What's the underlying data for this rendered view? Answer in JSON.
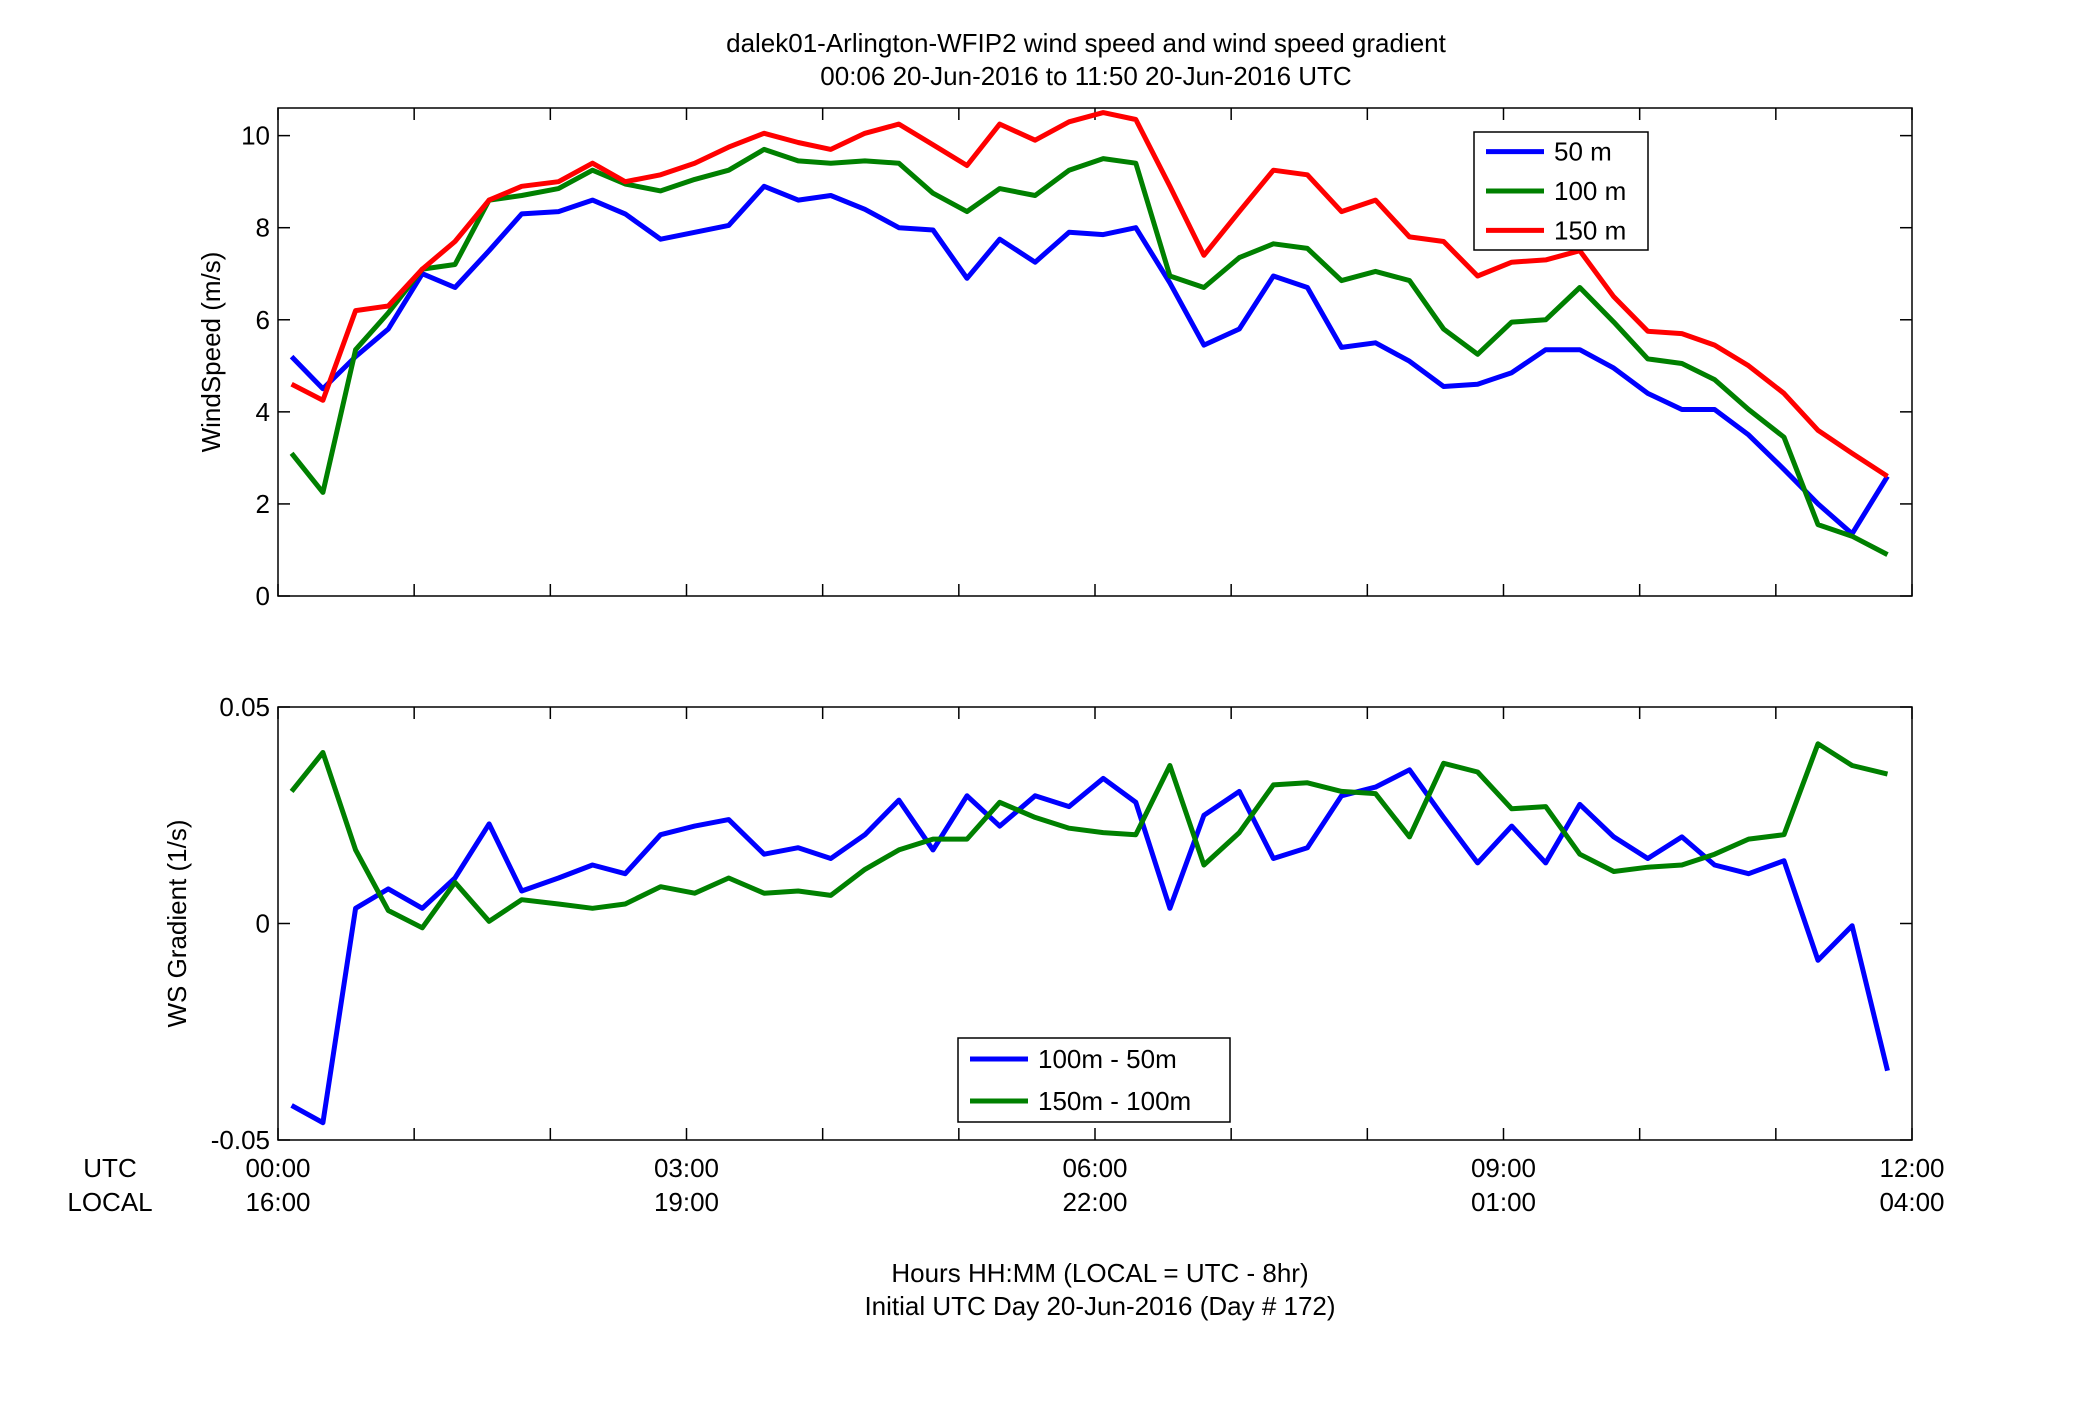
{
  "figure": {
    "title_line1": "dalek01-Arlington-WFIP2  wind speed and wind speed gradient",
    "title_line2": "00:06 20-Jun-2016 to 11:50 20-Jun-2016  UTC",
    "row_label_utc": "UTC",
    "row_label_local": "LOCAL",
    "xlabel_line1": "Hours HH:MM  (LOCAL = UTC - 8hr)",
    "xlabel_line2": "Initial UTC Day 20-Jun-2016 (Day # 172)",
    "x_ticks_utc": [
      "00:00",
      "03:00",
      "06:00",
      "09:00",
      "12:00"
    ],
    "x_ticks_local": [
      "16:00",
      "19:00",
      "22:00",
      "01:00",
      "04:00"
    ],
    "x_tick_hours": [
      0,
      3,
      6,
      9,
      12
    ]
  },
  "chart_data": [
    {
      "type": "line",
      "ylabel": "WindSpeed (m/s)",
      "ylim": [
        0,
        10.6
      ],
      "xlim": [
        0,
        12
      ],
      "yticks": [
        0,
        2,
        4,
        6,
        8,
        10
      ],
      "ytick_labels": [
        "0",
        "2",
        "4",
        "6",
        "8",
        "10"
      ],
      "legend_position": "top-right",
      "x": [
        0.1,
        0.33,
        0.57,
        0.81,
        1.06,
        1.3,
        1.55,
        1.79,
        2.06,
        2.31,
        2.55,
        2.81,
        3.06,
        3.31,
        3.57,
        3.82,
        4.06,
        4.31,
        4.56,
        4.81,
        5.06,
        5.3,
        5.56,
        5.81,
        6.06,
        6.3,
        6.55,
        6.8,
        7.06,
        7.31,
        7.56,
        7.81,
        8.06,
        8.31,
        8.56,
        8.81,
        9.06,
        9.31,
        9.56,
        9.81,
        10.06,
        10.31,
        10.55,
        10.8,
        11.06,
        11.31,
        11.56,
        11.82
      ],
      "series": [
        {
          "name": "50 m",
          "color": "#0000ff",
          "values": [
            5.2,
            4.5,
            5.2,
            5.8,
            7.0,
            6.7,
            7.5,
            8.3,
            8.35,
            8.6,
            8.3,
            7.75,
            7.9,
            8.05,
            8.9,
            8.6,
            8.7,
            8.4,
            8.0,
            7.95,
            6.9,
            7.75,
            7.25,
            7.9,
            7.85,
            8.0,
            6.8,
            5.45,
            5.8,
            6.95,
            6.7,
            5.4,
            5.5,
            5.1,
            4.55,
            4.6,
            4.85,
            5.35,
            5.35,
            4.95,
            4.4,
            4.05,
            4.05,
            3.5,
            2.75,
            2.0,
            1.35,
            2.6
          ]
        },
        {
          "name": "100 m",
          "color": "#008000",
          "values": [
            3.1,
            2.25,
            5.35,
            6.15,
            7.1,
            7.2,
            8.6,
            8.7,
            8.85,
            9.25,
            8.95,
            8.8,
            9.05,
            9.25,
            9.7,
            9.45,
            9.4,
            9.45,
            9.4,
            8.75,
            8.35,
            8.85,
            8.7,
            9.25,
            9.5,
            9.4,
            6.95,
            6.7,
            7.35,
            7.65,
            7.55,
            6.85,
            7.05,
            6.85,
            5.8,
            5.25,
            5.95,
            6.0,
            6.7,
            5.95,
            5.15,
            5.05,
            4.7,
            4.05,
            3.45,
            1.55,
            1.3,
            0.9
          ]
        },
        {
          "name": "150 m",
          "color": "#ff0000",
          "values": [
            4.6,
            4.25,
            6.2,
            6.3,
            7.1,
            7.7,
            8.6,
            8.9,
            9.0,
            9.4,
            9.0,
            9.15,
            9.4,
            9.75,
            10.05,
            9.85,
            9.7,
            10.05,
            10.25,
            9.8,
            9.35,
            10.25,
            9.9,
            10.3,
            10.5,
            10.35,
            8.9,
            7.4,
            8.35,
            9.25,
            9.15,
            8.35,
            8.6,
            7.8,
            7.7,
            6.95,
            7.25,
            7.3,
            7.5,
            6.5,
            5.75,
            5.7,
            5.45,
            5.0,
            4.4,
            3.6,
            3.1,
            2.6
          ]
        }
      ]
    },
    {
      "type": "line",
      "ylabel": "WS Gradient (1/s)",
      "ylim": [
        -0.05,
        0.05
      ],
      "xlim": [
        0,
        12
      ],
      "yticks": [
        -0.05,
        0,
        0.05
      ],
      "ytick_labels": [
        "-0.05",
        "0",
        "0.05"
      ],
      "legend_position": "bottom-center",
      "x": [
        0.1,
        0.33,
        0.57,
        0.81,
        1.06,
        1.3,
        1.55,
        1.79,
        2.06,
        2.31,
        2.55,
        2.81,
        3.06,
        3.31,
        3.57,
        3.82,
        4.06,
        4.31,
        4.56,
        4.81,
        5.06,
        5.3,
        5.56,
        5.81,
        6.06,
        6.3,
        6.55,
        6.8,
        7.06,
        7.31,
        7.56,
        7.81,
        8.06,
        8.31,
        8.56,
        8.81,
        9.06,
        9.31,
        9.56,
        9.81,
        10.06,
        10.31,
        10.55,
        10.8,
        11.06,
        11.31,
        11.56,
        11.82
      ],
      "series": [
        {
          "name": "100m - 50m",
          "color": "#0000ff",
          "values": [
            -0.042,
            -0.046,
            0.0035,
            0.008,
            0.0035,
            0.0105,
            0.023,
            0.0075,
            0.0105,
            0.0135,
            0.0115,
            0.0205,
            0.0225,
            0.024,
            0.016,
            0.0175,
            0.015,
            0.0205,
            0.0285,
            0.017,
            0.0295,
            0.0225,
            0.0295,
            0.027,
            0.0335,
            0.028,
            0.0035,
            0.025,
            0.0305,
            0.015,
            0.0175,
            0.0295,
            0.0315,
            0.0355,
            0.0245,
            0.014,
            0.0225,
            0.014,
            0.0275,
            0.02,
            0.015,
            0.02,
            0.0135,
            0.0115,
            0.0145,
            -0.0085,
            -0.0005,
            -0.034
          ]
        },
        {
          "name": "150m - 100m",
          "color": "#008000",
          "values": [
            0.0305,
            0.0395,
            0.017,
            0.003,
            -0.001,
            0.0095,
            0.0005,
            0.0055,
            0.0045,
            0.0035,
            0.0045,
            0.0085,
            0.007,
            0.0105,
            0.007,
            0.0075,
            0.0065,
            0.0125,
            0.017,
            0.0195,
            0.0195,
            0.028,
            0.0245,
            0.022,
            0.021,
            0.0205,
            0.0365,
            0.0135,
            0.021,
            0.032,
            0.0325,
            0.0305,
            0.03,
            0.02,
            0.037,
            0.035,
            0.0265,
            0.027,
            0.016,
            0.012,
            0.013,
            0.0135,
            0.016,
            0.0195,
            0.0205,
            0.0415,
            0.0365,
            0.0345
          ]
        }
      ]
    }
  ]
}
